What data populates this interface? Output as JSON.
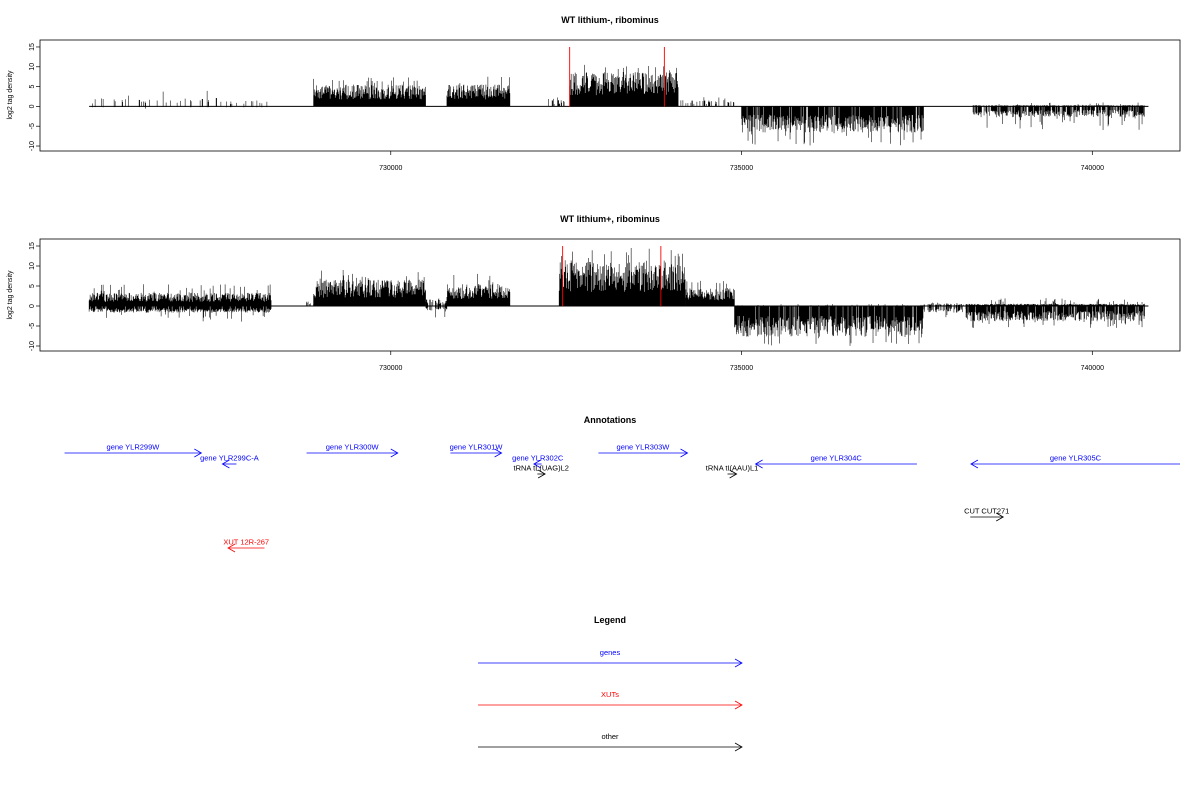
{
  "chart_data": [
    {
      "type": "bar",
      "title": "WT lithium-, ribominus",
      "ylabel": "log2 tag density",
      "xlabel": "",
      "xlim": [
        725000,
        741250
      ],
      "ylim": [
        -10.5,
        16
      ],
      "xticks": [
        730000,
        735000,
        740000
      ],
      "xtick_labels": [
        "730000",
        "735000",
        "740000"
      ],
      "yticks": [
        -10,
        -5,
        0,
        5,
        10,
        15
      ],
      "ytick_labels": [
        "-10",
        "-5",
        "0",
        "5",
        "10",
        "15"
      ],
      "baseline_range": [
        725700,
        740800
      ],
      "marker_positions": [
        732550,
        733900
      ],
      "marker_top": 15,
      "segments": [
        {
          "start": 725750,
          "end": 727550,
          "top": 2,
          "peak": 4,
          "bottom": -0.2,
          "deep": -1.5,
          "density": 0.15
        },
        {
          "start": 727550,
          "end": 728300,
          "top": 1.5,
          "peak": 3.5,
          "bottom": -0.2,
          "deep": -2,
          "density": 0.12
        },
        {
          "start": 728900,
          "end": 730500,
          "top": 5,
          "peak": 7.5,
          "bottom": 0,
          "deep": 0,
          "density": 1
        },
        {
          "start": 730800,
          "end": 731700,
          "top": 5,
          "peak": 7.5,
          "bottom": 0,
          "deep": 0,
          "density": 1
        },
        {
          "start": 732250,
          "end": 732480,
          "top": 1.5,
          "peak": 2.5,
          "bottom": 0,
          "deep": 0,
          "density": 0.3
        },
        {
          "start": 732550,
          "end": 734100,
          "top": 8,
          "peak": 11,
          "bottom": 0,
          "deep": 0,
          "density": 1
        },
        {
          "start": 734100,
          "end": 734900,
          "top": 1.5,
          "peak": 3,
          "bottom": 0,
          "deep": 0,
          "density": 0.25
        },
        {
          "start": 735000,
          "end": 737600,
          "top": 0,
          "peak": 0,
          "bottom": -6,
          "deep": -10,
          "density": 1
        },
        {
          "start": 738300,
          "end": 740750,
          "top": 0.3,
          "peak": 1,
          "bottom": -2.5,
          "deep": -6,
          "density": 0.85
        }
      ]
    },
    {
      "type": "bar",
      "title": "WT lithium+, ribominus",
      "ylabel": "log2 tag density",
      "xlabel": "",
      "xlim": [
        725000,
        741250
      ],
      "ylim": [
        -10.5,
        16
      ],
      "xticks": [
        730000,
        735000,
        740000
      ],
      "xtick_labels": [
        "730000",
        "735000",
        "740000"
      ],
      "yticks": [
        -10,
        -5,
        0,
        5,
        10,
        15
      ],
      "ytick_labels": [
        "-10",
        "-5",
        "0",
        "5",
        "10",
        "15"
      ],
      "baseline_range": [
        725700,
        740800
      ],
      "marker_positions": [
        732450,
        733850
      ],
      "marker_top": 15,
      "segments": [
        {
          "start": 725700,
          "end": 728300,
          "top": 3,
          "peak": 5.5,
          "bottom": -1.5,
          "deep": -4,
          "density": 1
        },
        {
          "start": 728800,
          "end": 728900,
          "top": 1,
          "peak": 2,
          "bottom": 0,
          "deep": 0,
          "density": 0.5
        },
        {
          "start": 728900,
          "end": 730500,
          "top": 6,
          "peak": 9,
          "bottom": 0,
          "deep": 0,
          "density": 1
        },
        {
          "start": 730500,
          "end": 730800,
          "top": 1.5,
          "peak": 2.5,
          "bottom": -1,
          "deep": -3,
          "density": 0.6
        },
        {
          "start": 730800,
          "end": 731700,
          "top": 5,
          "peak": 8.5,
          "bottom": 0,
          "deep": 0,
          "density": 1
        },
        {
          "start": 732400,
          "end": 734200,
          "top": 10,
          "peak": 14.5,
          "bottom": 0,
          "deep": 0,
          "density": 1
        },
        {
          "start": 734200,
          "end": 734900,
          "top": 4,
          "peak": 6.5,
          "bottom": 0,
          "deep": 0,
          "density": 1
        },
        {
          "start": 734900,
          "end": 737600,
          "top": 0,
          "peak": 0.5,
          "bottom": -7,
          "deep": -10,
          "density": 1
        },
        {
          "start": 737600,
          "end": 738200,
          "top": 0.5,
          "peak": 1,
          "bottom": -1.5,
          "deep": -3,
          "density": 0.6
        },
        {
          "start": 738200,
          "end": 740750,
          "top": 0.5,
          "peak": 2,
          "bottom": -3.5,
          "deep": -5.5,
          "density": 1
        }
      ]
    },
    {
      "type": "annotation-track",
      "title": "Annotations",
      "xlim": [
        725000,
        741250
      ],
      "features": [
        {
          "label": "gene YLR299W",
          "start": 725350,
          "end": 727300,
          "strand": "+",
          "row": 0,
          "class": "gene"
        },
        {
          "label": "gene YLR299C-A",
          "start": 727600,
          "end": 727800,
          "strand": "-",
          "row": 1,
          "class": "gene"
        },
        {
          "label": "gene YLR300W",
          "start": 728800,
          "end": 730100,
          "strand": "+",
          "row": 0,
          "class": "gene"
        },
        {
          "label": "gene YLR301W",
          "start": 730850,
          "end": 731580,
          "strand": "+",
          "row": 0,
          "class": "gene"
        },
        {
          "label": "gene YLR302C",
          "start": 732040,
          "end": 732150,
          "strand": "-",
          "row": 1,
          "class": "gene"
        },
        {
          "label": "gene YLR303W",
          "start": 732960,
          "end": 734230,
          "strand": "+",
          "row": 0,
          "class": "gene"
        },
        {
          "label": "tRNA tL(UAG)L2",
          "start": 732090,
          "end": 732200,
          "strand": "+",
          "row": 2,
          "class": "other"
        },
        {
          "label": "tRNA tI(AAU)L1",
          "start": 734800,
          "end": 734930,
          "strand": "+",
          "row": 2,
          "class": "other"
        },
        {
          "label": "gene YLR304C",
          "start": 735200,
          "end": 737500,
          "strand": "-",
          "row": 1,
          "class": "gene"
        },
        {
          "label": "gene YLR305C",
          "start": 738270,
          "end": 741250,
          "strand": "-",
          "row": 1,
          "class": "gene"
        },
        {
          "label": "CUT CUT271",
          "start": 738260,
          "end": 738730,
          "strand": "+",
          "row": 3,
          "class": "other"
        },
        {
          "label": "XUT 12R-267",
          "start": 727680,
          "end": 728200,
          "strand": "-",
          "row": 4,
          "class": "xut"
        }
      ]
    },
    {
      "type": "legend",
      "title": "Legend",
      "entries": [
        {
          "label": "genes",
          "class": "gene"
        },
        {
          "label": "XUTs",
          "class": "xut"
        },
        {
          "label": "other",
          "class": "other"
        }
      ]
    }
  ],
  "colors": {
    "gene": "#0000ff",
    "xut": "#ff0000",
    "other": "#000000",
    "marker": "#ff0000",
    "bars": "#000000"
  }
}
